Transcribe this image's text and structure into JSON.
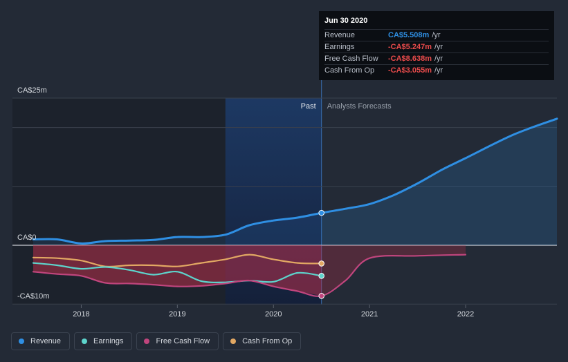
{
  "colors": {
    "revenue": "#2f8fe3",
    "earnings": "#5dd4cc",
    "free_cash_flow": "#c0457d",
    "cash_from_op": "#e2a863",
    "negative": "#e94b4b"
  },
  "tooltip": {
    "date": "Jun 30 2020",
    "rows": [
      {
        "label": "Revenue",
        "value": "CA$5.508m",
        "unit": "/yr"
      },
      {
        "label": "Earnings",
        "value": "-CA$5.247m",
        "unit": "/yr"
      },
      {
        "label": "Free Cash Flow",
        "value": "-CA$8.638m",
        "unit": "/yr"
      },
      {
        "label": "Cash From Op",
        "value": "-CA$3.055m",
        "unit": "/yr"
      }
    ]
  },
  "legend": [
    "Revenue",
    "Earnings",
    "Free Cash Flow",
    "Cash From Op"
  ],
  "chart_data": {
    "type": "line",
    "title": "",
    "section_labels": {
      "past": "Past",
      "forecast": "Analysts Forecasts"
    },
    "y_tick_labels": [
      "CA$25m",
      "CA$0",
      "-CA$10m"
    ],
    "y_ticks": [
      25,
      0,
      -10
    ],
    "ylim": [
      -10,
      25
    ],
    "xlim": [
      2017.5,
      2022.95
    ],
    "x_tick_labels": [
      "2018",
      "2019",
      "2020",
      "2021",
      "2022"
    ],
    "x_ticks": [
      2018,
      2019,
      2020,
      2021,
      2022
    ],
    "highlight_range": [
      2019.5,
      2020.5
    ],
    "now": 2020.5,
    "series": [
      {
        "name": "Revenue",
        "key": "revenue",
        "x": [
          2017.5,
          2017.75,
          2018.0,
          2018.25,
          2018.5,
          2018.75,
          2019.0,
          2019.25,
          2019.5,
          2019.75,
          2020.0,
          2020.25,
          2020.5
        ],
        "y": [
          1.0,
          1.0,
          0.3,
          0.7,
          0.8,
          0.9,
          1.4,
          1.4,
          1.8,
          3.4,
          4.2,
          4.7,
          5.5
        ]
      },
      {
        "name": "Revenue forecast",
        "key": "revenue",
        "forecast": true,
        "x": [
          2020.5,
          2020.75,
          2021.0,
          2021.25,
          2021.5,
          2021.75,
          2022.0,
          2022.5,
          2022.95
        ],
        "y": [
          5.5,
          6.2,
          7.0,
          8.5,
          10.5,
          12.8,
          14.8,
          18.8,
          21.5
        ]
      },
      {
        "name": "Earnings",
        "key": "earnings",
        "x": [
          2017.5,
          2017.75,
          2018.0,
          2018.25,
          2018.5,
          2018.75,
          2019.0,
          2019.25,
          2019.5,
          2019.75,
          2020.0,
          2020.25,
          2020.5
        ],
        "y": [
          -3.0,
          -3.4,
          -4.0,
          -3.7,
          -4.2,
          -5.0,
          -4.5,
          -6.1,
          -6.3,
          -6.0,
          -6.2,
          -4.7,
          -5.2
        ]
      },
      {
        "name": "Free Cash Flow",
        "key": "free_cash_flow",
        "x": [
          2017.5,
          2017.75,
          2018.0,
          2018.25,
          2018.5,
          2018.75,
          2019.0,
          2019.25,
          2019.5,
          2019.75,
          2020.0,
          2020.25,
          2020.5,
          2020.75,
          2021.0,
          2021.5,
          2022.0
        ],
        "y": [
          -4.5,
          -4.9,
          -5.2,
          -6.4,
          -6.5,
          -6.7,
          -7.0,
          -6.9,
          -6.5,
          -6.0,
          -7.0,
          -7.8,
          -8.6,
          -6.0,
          -2.2,
          -1.8,
          -1.6
        ]
      },
      {
        "name": "Cash From Op",
        "key": "cash_from_op",
        "x": [
          2017.5,
          2017.75,
          2018.0,
          2018.25,
          2018.5,
          2018.75,
          2019.0,
          2019.25,
          2019.5,
          2019.75,
          2020.0,
          2020.25,
          2020.5
        ],
        "y": [
          -2.1,
          -2.2,
          -2.6,
          -3.6,
          -3.4,
          -3.4,
          -3.6,
          -3.0,
          -2.4,
          -1.6,
          -2.4,
          -3.0,
          -3.1
        ]
      }
    ]
  }
}
